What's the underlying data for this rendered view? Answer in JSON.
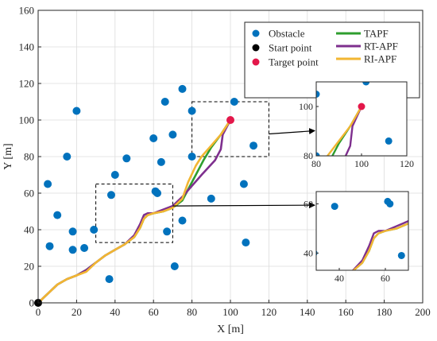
{
  "chart_data": {
    "type": "scatter",
    "title": "",
    "xlabel": "X [m]",
    "ylabel": "Y [m]",
    "xlim": [
      0,
      200
    ],
    "ylim": [
      0,
      160
    ],
    "xticks": [
      0,
      20,
      40,
      60,
      80,
      100,
      120,
      140,
      160,
      180,
      200
    ],
    "yticks": [
      0,
      20,
      40,
      60,
      80,
      100,
      120,
      140,
      160
    ],
    "grid": true,
    "legend_position": "top-right",
    "colors": {
      "obstacle": "#0072BD",
      "start": "#000000",
      "target": "#E3174A",
      "tapf": "#2E9E2E",
      "rtapf": "#7E2F8E",
      "riapf": "#F2B632"
    },
    "legend": [
      {
        "label": "Obstacle",
        "kind": "marker",
        "color": "#0072BD"
      },
      {
        "label": "Start point",
        "kind": "marker",
        "color": "#000000"
      },
      {
        "label": "Target point",
        "kind": "marker",
        "color": "#E3174A"
      },
      {
        "label": "TAPF",
        "kind": "line",
        "color": "#2E9E2E"
      },
      {
        "label": "RT-APF",
        "kind": "line",
        "color": "#7E2F8E"
      },
      {
        "label": "RI-APF",
        "kind": "line",
        "color": "#F2B632"
      }
    ],
    "obstacles": [
      [
        5,
        65
      ],
      [
        6,
        31
      ],
      [
        10,
        48
      ],
      [
        15,
        80
      ],
      [
        18,
        39
      ],
      [
        18,
        29
      ],
      [
        20,
        105
      ],
      [
        24,
        30
      ],
      [
        29,
        40
      ],
      [
        37,
        13
      ],
      [
        38,
        59
      ],
      [
        40,
        70
      ],
      [
        46,
        79
      ],
      [
        60,
        90
      ],
      [
        61,
        61
      ],
      [
        62,
        60
      ],
      [
        64,
        77
      ],
      [
        66,
        110
      ],
      [
        67,
        39
      ],
      [
        70,
        92
      ],
      [
        71,
        20
      ],
      [
        75,
        117
      ],
      [
        75,
        45
      ],
      [
        80,
        105
      ],
      [
        80,
        80
      ],
      [
        90,
        57
      ],
      [
        102,
        110
      ],
      [
        107,
        65
      ],
      [
        108,
        33
      ],
      [
        112,
        86
      ]
    ],
    "start": [
      0,
      0
    ],
    "target": [
      100,
      100
    ],
    "series": [
      {
        "name": "TAPF",
        "points": [
          [
            0,
            0
          ],
          [
            5,
            5
          ],
          [
            10,
            10
          ],
          [
            15,
            13
          ],
          [
            20,
            15
          ],
          [
            25,
            18
          ],
          [
            30,
            22
          ],
          [
            35,
            26
          ],
          [
            40,
            29
          ],
          [
            45,
            32
          ],
          [
            50,
            36
          ],
          [
            53,
            41
          ],
          [
            55,
            46
          ],
          [
            57,
            48
          ],
          [
            60,
            49
          ],
          [
            65,
            50
          ],
          [
            70,
            52
          ],
          [
            75,
            56
          ],
          [
            78,
            62
          ],
          [
            82,
            70
          ],
          [
            86,
            78
          ],
          [
            90,
            85
          ],
          [
            95,
            92
          ],
          [
            100,
            100
          ]
        ]
      },
      {
        "name": "RT-APF",
        "points": [
          [
            0,
            0
          ],
          [
            5,
            5
          ],
          [
            10,
            10
          ],
          [
            15,
            13
          ],
          [
            20,
            15
          ],
          [
            25,
            18
          ],
          [
            30,
            22
          ],
          [
            35,
            26
          ],
          [
            40,
            29
          ],
          [
            45,
            32
          ],
          [
            50,
            37
          ],
          [
            53,
            43
          ],
          [
            55,
            48
          ],
          [
            57,
            49
          ],
          [
            60,
            49
          ],
          [
            65,
            51
          ],
          [
            70,
            53
          ],
          [
            75,
            58
          ],
          [
            80,
            64
          ],
          [
            85,
            70
          ],
          [
            92,
            78
          ],
          [
            95,
            84
          ],
          [
            96,
            92
          ],
          [
            100,
            100
          ]
        ]
      },
      {
        "name": "RI-APF",
        "points": [
          [
            0,
            0
          ],
          [
            5,
            5
          ],
          [
            10,
            10
          ],
          [
            15,
            13
          ],
          [
            20,
            15
          ],
          [
            25,
            17
          ],
          [
            30,
            22
          ],
          [
            35,
            26
          ],
          [
            40,
            29
          ],
          [
            45,
            32
          ],
          [
            50,
            36
          ],
          [
            53,
            41
          ],
          [
            55,
            46
          ],
          [
            57,
            48
          ],
          [
            60,
            49
          ],
          [
            65,
            50
          ],
          [
            70,
            52
          ],
          [
            75,
            57
          ],
          [
            78,
            66
          ],
          [
            82,
            75
          ],
          [
            85,
            80
          ],
          [
            90,
            86
          ],
          [
            95,
            92
          ],
          [
            100,
            100
          ]
        ]
      }
    ],
    "zoom_regions": [
      {
        "xlim": [
          80,
          120
        ],
        "ylim": [
          80,
          110
        ],
        "xticks": [
          80,
          100,
          120
        ],
        "yticks": [
          80,
          100
        ]
      },
      {
        "xlim": [
          30,
          70
        ],
        "ylim": [
          33,
          65
        ],
        "xticks": [
          40,
          60
        ],
        "yticks": [
          40,
          60
        ]
      }
    ]
  }
}
